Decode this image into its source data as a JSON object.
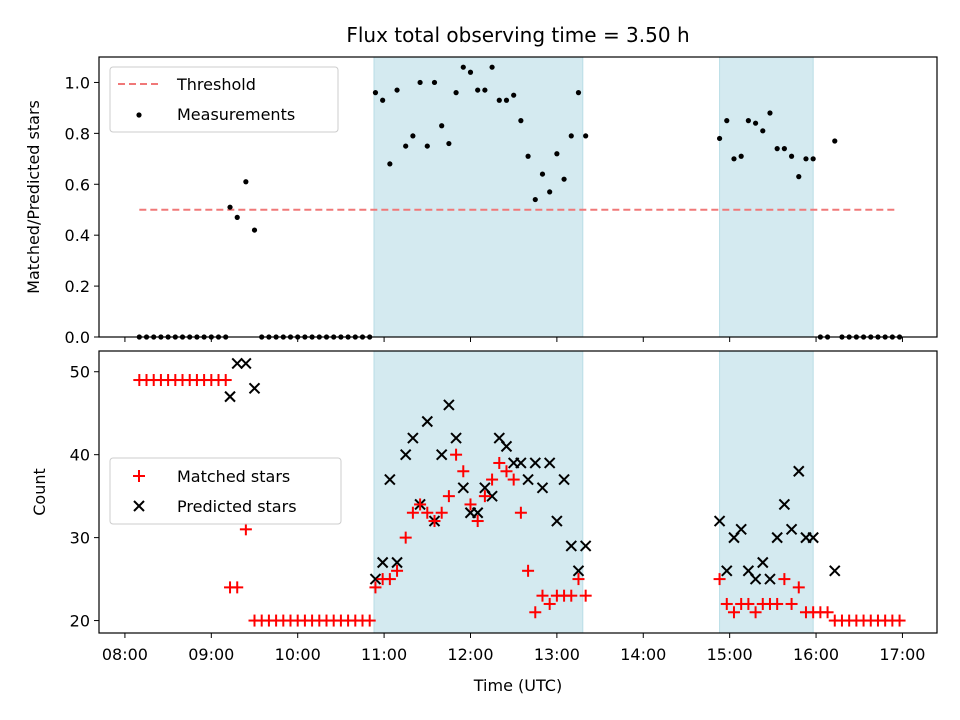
{
  "chart_data": [
    {
      "type": "scatter",
      "title": "Flux total observing time = 3.50 h",
      "xlabel": "",
      "ylabel": "Matched/Predicted stars",
      "ylim": [
        0,
        1.1
      ],
      "yticks": [
        "0.0",
        "0.2",
        "0.4",
        "0.6",
        "0.8",
        "1.0"
      ],
      "xlim_hours": [
        7.7,
        17.4
      ],
      "shaded_regions": [
        {
          "start": "10:53",
          "end": "13:18",
          "color": "#d4eaf0"
        },
        {
          "start": "14:53",
          "end": "15:58",
          "color": "#d4eaf0"
        }
      ],
      "legend": {
        "placement": "upper-left",
        "entries": [
          "Threshold",
          "Measurements"
        ]
      },
      "threshold": {
        "name": "Threshold",
        "y": 0.5,
        "x_start": "08:10",
        "x_end": "16:55",
        "color": "#f07878",
        "style": "dashed"
      },
      "series": [
        {
          "name": "Measurements",
          "color": "#000000",
          "marker": "dot",
          "points": [
            [
              "08:10",
              0
            ],
            [
              "08:15",
              0
            ],
            [
              "08:20",
              0
            ],
            [
              "08:25",
              0
            ],
            [
              "08:30",
              0
            ],
            [
              "08:35",
              0
            ],
            [
              "08:40",
              0
            ],
            [
              "08:45",
              0
            ],
            [
              "08:50",
              0
            ],
            [
              "08:55",
              0
            ],
            [
              "09:00",
              0
            ],
            [
              "09:05",
              0
            ],
            [
              "09:10",
              0
            ],
            [
              "09:13",
              0.51
            ],
            [
              "09:18",
              0.47
            ],
            [
              "09:24",
              0.61
            ],
            [
              "09:30",
              0.42
            ],
            [
              "09:35",
              0
            ],
            [
              "09:40",
              0
            ],
            [
              "09:45",
              0
            ],
            [
              "09:50",
              0
            ],
            [
              "09:55",
              0
            ],
            [
              "10:00",
              0
            ],
            [
              "10:05",
              0
            ],
            [
              "10:10",
              0
            ],
            [
              "10:15",
              0
            ],
            [
              "10:20",
              0
            ],
            [
              "10:25",
              0
            ],
            [
              "10:30",
              0
            ],
            [
              "10:35",
              0
            ],
            [
              "10:40",
              0
            ],
            [
              "10:45",
              0
            ],
            [
              "10:50",
              0
            ],
            [
              "10:54",
              0.96
            ],
            [
              "10:59",
              0.93
            ],
            [
              "11:04",
              0.68
            ],
            [
              "11:09",
              0.97
            ],
            [
              "11:15",
              0.75
            ],
            [
              "11:20",
              0.79
            ],
            [
              "11:25",
              1.0
            ],
            [
              "11:30",
              0.75
            ],
            [
              "11:35",
              1.0
            ],
            [
              "11:40",
              0.83
            ],
            [
              "11:45",
              0.76
            ],
            [
              "11:50",
              0.96
            ],
            [
              "11:55",
              1.06
            ],
            [
              "12:00",
              1.04
            ],
            [
              "12:05",
              0.97
            ],
            [
              "12:10",
              0.97
            ],
            [
              "12:15",
              1.06
            ],
            [
              "12:20",
              0.93
            ],
            [
              "12:25",
              0.93
            ],
            [
              "12:30",
              0.95
            ],
            [
              "12:35",
              0.85
            ],
            [
              "12:40",
              0.71
            ],
            [
              "12:45",
              0.54
            ],
            [
              "12:50",
              0.64
            ],
            [
              "12:55",
              0.57
            ],
            [
              "13:00",
              0.72
            ],
            [
              "13:05",
              0.62
            ],
            [
              "13:10",
              0.79
            ],
            [
              "13:15",
              0.96
            ],
            [
              "13:20",
              0.79
            ],
            [
              "14:53",
              0.78
            ],
            [
              "14:58",
              0.85
            ],
            [
              "15:03",
              0.7
            ],
            [
              "15:08",
              0.71
            ],
            [
              "15:13",
              0.85
            ],
            [
              "15:18",
              0.84
            ],
            [
              "15:23",
              0.81
            ],
            [
              "15:28",
              0.88
            ],
            [
              "15:33",
              0.74
            ],
            [
              "15:38",
              0.74
            ],
            [
              "15:43",
              0.71
            ],
            [
              "15:48",
              0.63
            ],
            [
              "15:53",
              0.7
            ],
            [
              "15:58",
              0.7
            ],
            [
              "16:03",
              0
            ],
            [
              "16:08",
              0
            ],
            [
              "16:13",
              0.77
            ],
            [
              "16:18",
              0
            ],
            [
              "16:23",
              0
            ],
            [
              "16:28",
              0
            ],
            [
              "16:33",
              0
            ],
            [
              "16:38",
              0
            ],
            [
              "16:43",
              0
            ],
            [
              "16:48",
              0
            ],
            [
              "16:53",
              0
            ],
            [
              "16:58",
              0
            ]
          ]
        }
      ]
    },
    {
      "type": "scatter",
      "title": "",
      "xlabel": "Time (UTC)",
      "ylabel": "Count",
      "ylim": [
        18.5,
        52.5
      ],
      "yticks": [
        "20",
        "30",
        "40",
        "50"
      ],
      "xticks": [
        "08:00",
        "09:00",
        "10:00",
        "11:00",
        "12:00",
        "13:00",
        "14:00",
        "15:00",
        "16:00",
        "17:00"
      ],
      "xlim_hours": [
        7.7,
        17.4
      ],
      "shaded_regions": [
        {
          "start": "10:53",
          "end": "13:18",
          "color": "#d4eaf0"
        },
        {
          "start": "14:53",
          "end": "15:58",
          "color": "#d4eaf0"
        }
      ],
      "legend": {
        "placement": "center-left",
        "entries": [
          "Matched stars",
          "Predicted stars"
        ]
      },
      "series": [
        {
          "name": "Matched stars",
          "color": "#ff0000",
          "marker": "plus",
          "points": [
            [
              "08:10",
              49
            ],
            [
              "08:15",
              49
            ],
            [
              "08:20",
              49
            ],
            [
              "08:25",
              49
            ],
            [
              "08:30",
              49
            ],
            [
              "08:35",
              49
            ],
            [
              "08:40",
              49
            ],
            [
              "08:45",
              49
            ],
            [
              "08:50",
              49
            ],
            [
              "08:55",
              49
            ],
            [
              "09:00",
              49
            ],
            [
              "09:05",
              49
            ],
            [
              "09:10",
              49
            ],
            [
              "09:13",
              24
            ],
            [
              "09:18",
              24
            ],
            [
              "09:24",
              31
            ],
            [
              "09:30",
              20
            ],
            [
              "09:35",
              20
            ],
            [
              "09:40",
              20
            ],
            [
              "09:45",
              20
            ],
            [
              "09:50",
              20
            ],
            [
              "09:55",
              20
            ],
            [
              "10:00",
              20
            ],
            [
              "10:05",
              20
            ],
            [
              "10:10",
              20
            ],
            [
              "10:15",
              20
            ],
            [
              "10:20",
              20
            ],
            [
              "10:25",
              20
            ],
            [
              "10:30",
              20
            ],
            [
              "10:35",
              20
            ],
            [
              "10:40",
              20
            ],
            [
              "10:45",
              20
            ],
            [
              "10:50",
              20
            ],
            [
              "10:54",
              24
            ],
            [
              "10:59",
              25
            ],
            [
              "11:04",
              25
            ],
            [
              "11:09",
              26
            ],
            [
              "11:15",
              30
            ],
            [
              "11:20",
              33
            ],
            [
              "11:25",
              34
            ],
            [
              "11:30",
              33
            ],
            [
              "11:35",
              32
            ],
            [
              "11:40",
              33
            ],
            [
              "11:45",
              35
            ],
            [
              "11:50",
              40
            ],
            [
              "11:55",
              38
            ],
            [
              "12:00",
              34
            ],
            [
              "12:05",
              32
            ],
            [
              "12:10",
              35
            ],
            [
              "12:15",
              37
            ],
            [
              "12:20",
              39
            ],
            [
              "12:25",
              38
            ],
            [
              "12:30",
              37
            ],
            [
              "12:35",
              33
            ],
            [
              "12:40",
              26
            ],
            [
              "12:45",
              21
            ],
            [
              "12:50",
              23
            ],
            [
              "12:55",
              22
            ],
            [
              "13:00",
              23
            ],
            [
              "13:05",
              23
            ],
            [
              "13:10",
              23
            ],
            [
              "13:15",
              25
            ],
            [
              "13:20",
              23
            ],
            [
              "14:53",
              25
            ],
            [
              "14:58",
              22
            ],
            [
              "15:03",
              21
            ],
            [
              "15:08",
              22
            ],
            [
              "15:13",
              22
            ],
            [
              "15:18",
              21
            ],
            [
              "15:23",
              22
            ],
            [
              "15:28",
              22
            ],
            [
              "15:33",
              22
            ],
            [
              "15:38",
              25
            ],
            [
              "15:43",
              22
            ],
            [
              "15:48",
              24
            ],
            [
              "15:53",
              21
            ],
            [
              "15:58",
              21
            ],
            [
              "16:03",
              21
            ],
            [
              "16:08",
              21
            ],
            [
              "16:13",
              20
            ],
            [
              "16:18",
              20
            ],
            [
              "16:23",
              20
            ],
            [
              "16:28",
              20
            ],
            [
              "16:33",
              20
            ],
            [
              "16:38",
              20
            ],
            [
              "16:43",
              20
            ],
            [
              "16:48",
              20
            ],
            [
              "16:53",
              20
            ],
            [
              "16:58",
              20
            ]
          ]
        },
        {
          "name": "Predicted stars",
          "color": "#000000",
          "marker": "x",
          "points": [
            [
              "09:13",
              47
            ],
            [
              "09:18",
              51
            ],
            [
              "09:24",
              51
            ],
            [
              "09:30",
              48
            ],
            [
              "10:54",
              25
            ],
            [
              "10:59",
              27
            ],
            [
              "11:04",
              37
            ],
            [
              "11:09",
              27
            ],
            [
              "11:15",
              40
            ],
            [
              "11:20",
              42
            ],
            [
              "11:25",
              34
            ],
            [
              "11:30",
              44
            ],
            [
              "11:35",
              32
            ],
            [
              "11:40",
              40
            ],
            [
              "11:45",
              46
            ],
            [
              "11:50",
              42
            ],
            [
              "11:55",
              36
            ],
            [
              "12:00",
              33
            ],
            [
              "12:05",
              33
            ],
            [
              "12:10",
              36
            ],
            [
              "12:15",
              35
            ],
            [
              "12:20",
              42
            ],
            [
              "12:25",
              41
            ],
            [
              "12:30",
              39
            ],
            [
              "12:35",
              39
            ],
            [
              "12:40",
              37
            ],
            [
              "12:45",
              39
            ],
            [
              "12:50",
              36
            ],
            [
              "12:55",
              39
            ],
            [
              "13:00",
              32
            ],
            [
              "13:05",
              37
            ],
            [
              "13:10",
              29
            ],
            [
              "13:15",
              26
            ],
            [
              "13:20",
              29
            ],
            [
              "14:53",
              32
            ],
            [
              "14:58",
              26
            ],
            [
              "15:03",
              30
            ],
            [
              "15:08",
              31
            ],
            [
              "15:13",
              26
            ],
            [
              "15:18",
              25
            ],
            [
              "15:23",
              27
            ],
            [
              "15:28",
              25
            ],
            [
              "15:33",
              30
            ],
            [
              "15:38",
              34
            ],
            [
              "15:43",
              31
            ],
            [
              "15:48",
              38
            ],
            [
              "15:53",
              30
            ],
            [
              "15:58",
              30
            ],
            [
              "16:13",
              26
            ]
          ]
        }
      ]
    }
  ]
}
